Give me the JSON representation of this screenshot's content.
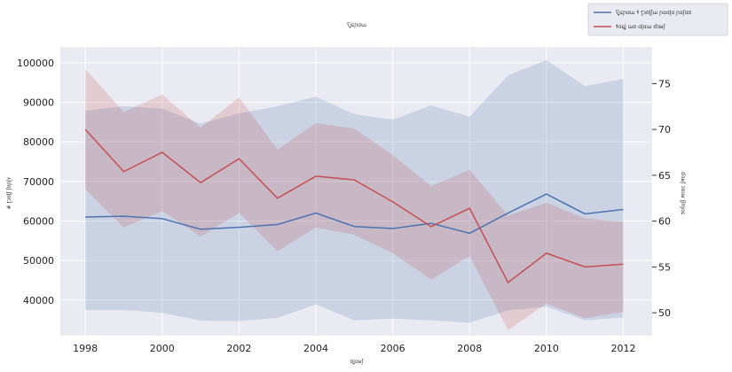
{
  "chart_data": {
    "type": "line",
    "title": "ʕʝɕɲɑɯ",
    "xlabel": "ʊʝɑʁʃ",
    "ylabel_left": "# ʈɔʊɭʃ ʃʊɲɭʏ",
    "ylabel_right": "ɗɑʁʃ ɔʊɑʁ ɭʃɱɑɕ",
    "x": [
      1998,
      1999,
      2000,
      2001,
      2002,
      2003,
      2004,
      2005,
      2006,
      2007,
      2008,
      2009,
      2010,
      2011,
      2012
    ],
    "x_ticks": [
      "1998",
      "2000",
      "2002",
      "2004",
      "2006",
      "2008",
      "2010",
      "2012"
    ],
    "xlim": [
      1997.35,
      2012.75
    ],
    "left_axis": {
      "ylim": [
        31000,
        104000
      ],
      "ticks": [
        "40000",
        "50000",
        "60000",
        "70000",
        "80000",
        "90000",
        "100000"
      ]
    },
    "right_axis": {
      "ylim": [
        47.5,
        79.0
      ],
      "ticks": [
        "50",
        "55",
        "60",
        "65",
        "70",
        "75"
      ]
    },
    "grid": true,
    "legend_position": "top-right",
    "series": [
      {
        "name": "ʕʝɕɲɑɯ ɬ ʈɔʊɭʃɯ ɲɑɑɭɑ ɲɑʃɑʊ",
        "axis": "left",
        "color": "#4c72b0",
        "values": [
          61000,
          61200,
          60600,
          57900,
          58400,
          59100,
          62000,
          58600,
          58100,
          59400,
          56900,
          62000,
          66800,
          61800,
          62900
        ],
        "band_upper": [
          87900,
          89000,
          88400,
          84600,
          87200,
          89000,
          91400,
          87000,
          85600,
          89200,
          86400,
          96800,
          100700,
          94100,
          95900
        ],
        "band_lower": [
          37500,
          37500,
          36800,
          34800,
          34700,
          35500,
          38900,
          34900,
          35300,
          34900,
          34300,
          37400,
          38300,
          34900,
          35600
        ]
      },
      {
        "name": "ɬɑɕʝ ɯʊ ɑɭɑɯ ɗɑʁʃ",
        "axis": "right",
        "color": "#c44e52",
        "values": [
          70.0,
          65.4,
          67.5,
          64.2,
          66.8,
          62.5,
          64.9,
          64.5,
          62.1,
          59.4,
          61.4,
          53.3,
          56.5,
          55.0,
          55.3
        ],
        "band_upper": [
          76.6,
          71.9,
          73.8,
          70.2,
          73.5,
          67.8,
          70.7,
          70.1,
          67.2,
          63.8,
          65.6,
          60.6,
          62.0,
          60.3,
          59.9
        ],
        "band_lower": [
          63.5,
          59.3,
          61.1,
          58.3,
          60.9,
          56.7,
          59.3,
          58.5,
          56.5,
          53.6,
          56.2,
          48.1,
          51.0,
          49.4,
          50.1
        ]
      }
    ]
  }
}
